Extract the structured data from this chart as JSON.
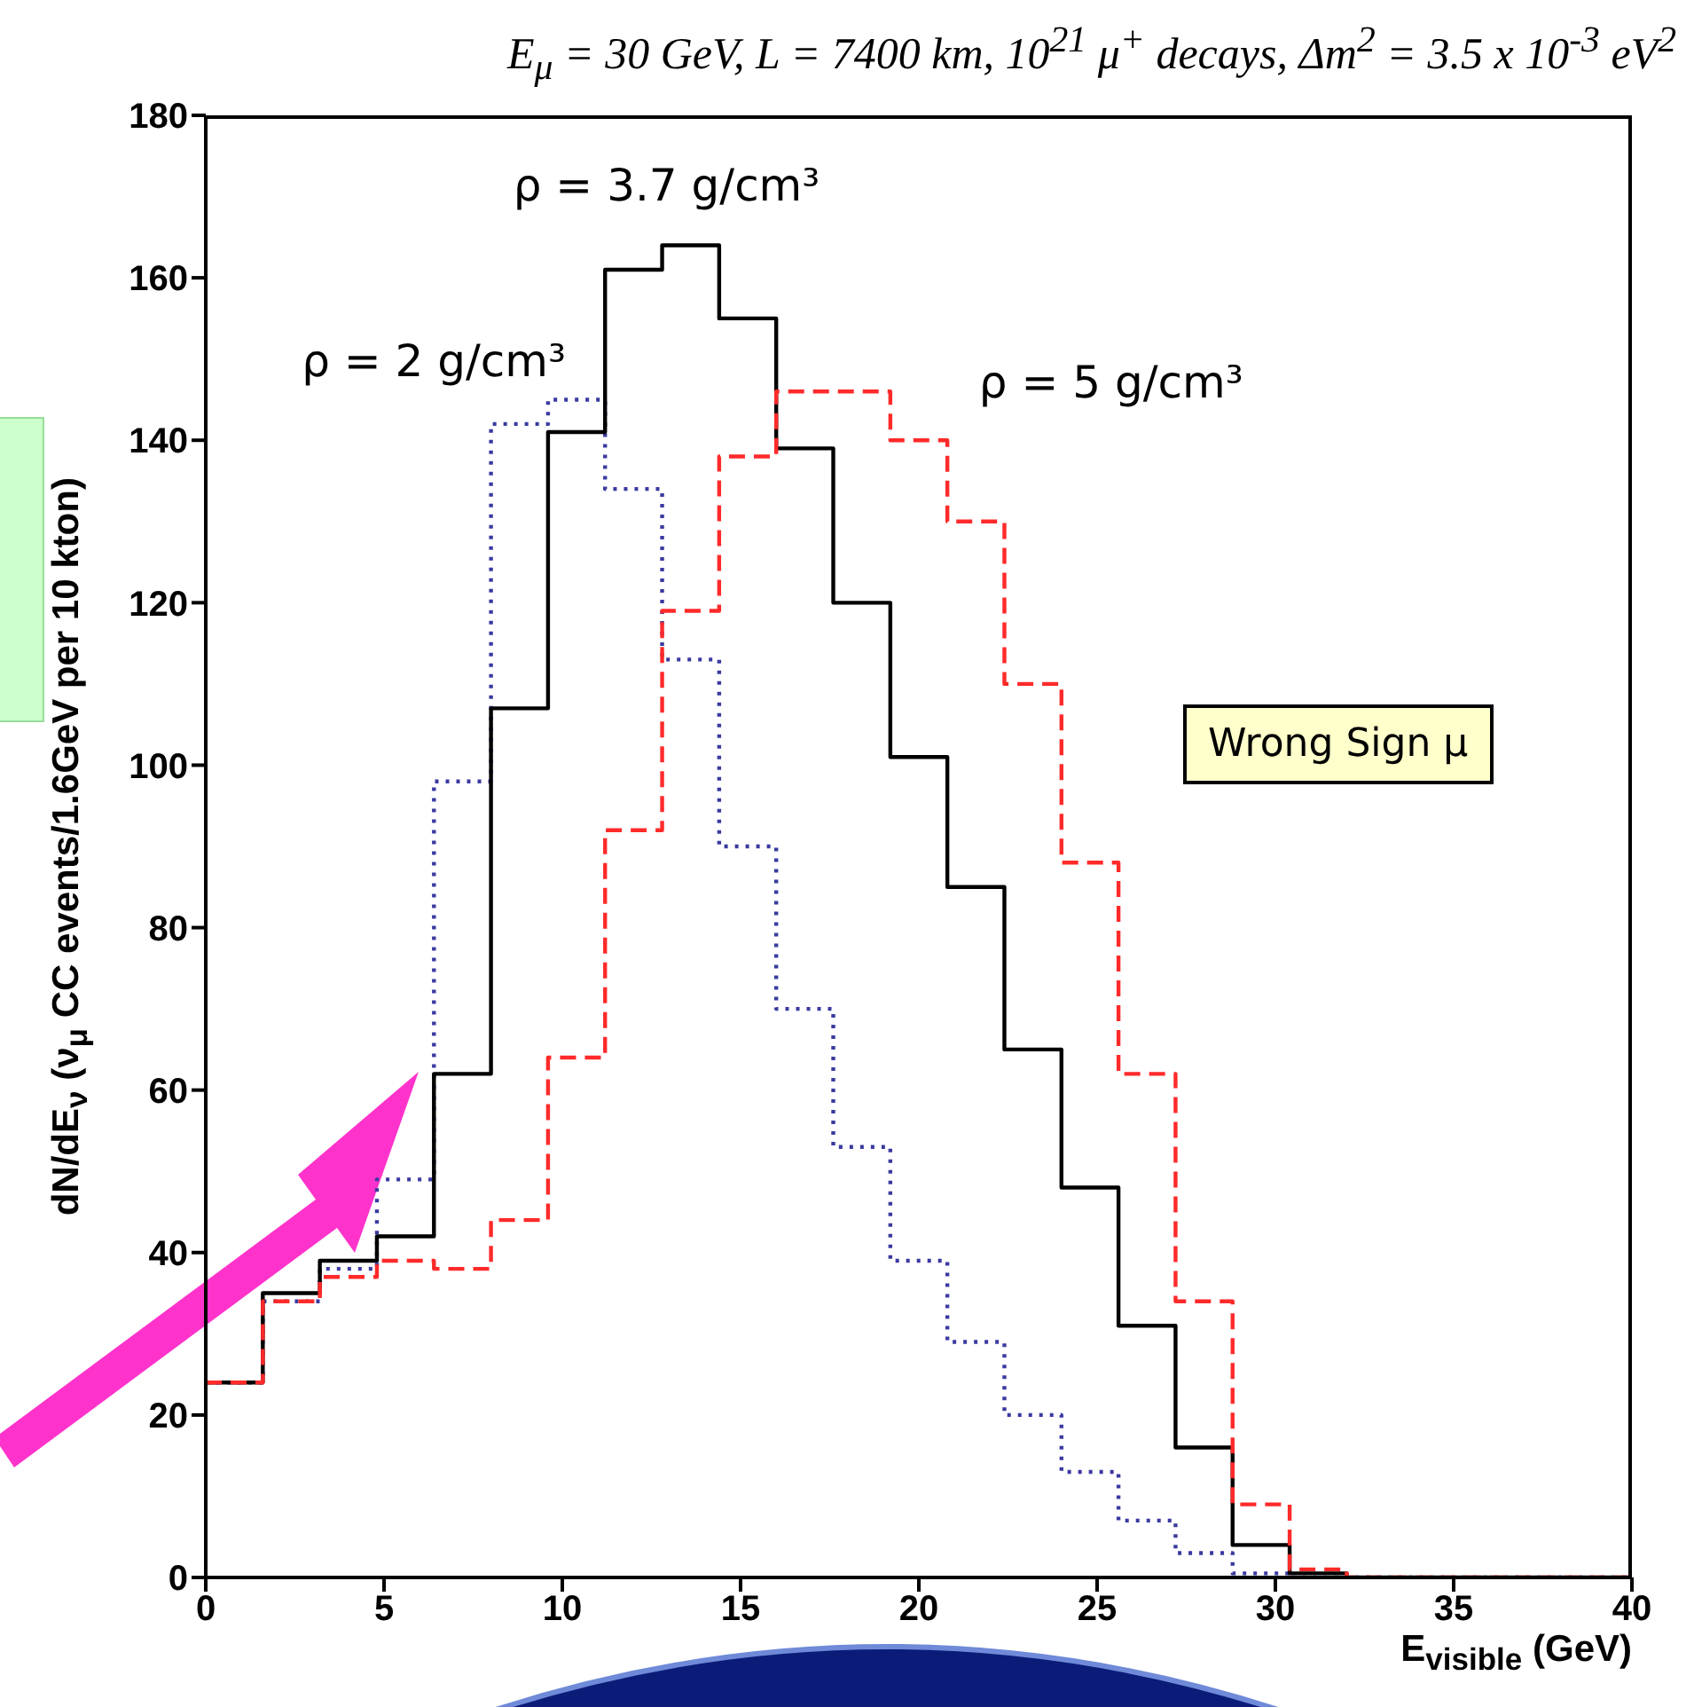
{
  "chart_data": {
    "type": "histogram",
    "title": "E$_{μ}$ = 30 GeV, L = 7400 km, 10$^{21}$ μ$^{+}$ decays,  Δm$^{2}$ = 3.5 x 10$^{-3}$ eV$^{2}$",
    "xlabel": "E$_{visible}$ (GeV)",
    "ylabel": "dN/dE$_{ν}$ (ν$_{μ}$ CC events/1.6GeV per 10 kton)",
    "bins": [
      0,
      1.6,
      3.2,
      4.8,
      6.4,
      8,
      9.6,
      11.2,
      12.8,
      14.4,
      16,
      17.6,
      19.2,
      20.8,
      22.4,
      24,
      25.6,
      27.2,
      28.8,
      30.4,
      32,
      33.6,
      35.2,
      36.8,
      38.4,
      40
    ],
    "series": [
      {
        "name": "ρ = 2 g/cm³",
        "color": "#3a3aa0",
        "line_style": "dotted",
        "values": [
          24,
          34,
          38,
          49,
          98,
          142,
          145,
          134,
          113,
          90,
          70,
          53,
          39,
          29,
          20,
          13,
          7,
          3,
          0.5,
          0,
          0,
          0,
          0,
          0,
          0
        ]
      },
      {
        "name": "ρ = 3.7 g/cm³",
        "color": "#000000",
        "line_style": "solid",
        "values": [
          24,
          35,
          39,
          42,
          62,
          107,
          141,
          161,
          164,
          155,
          139,
          120,
          101,
          85,
          65,
          48,
          31,
          16,
          4,
          0.5,
          0,
          0,
          0,
          0,
          0
        ]
      },
      {
        "name": "ρ = 5 g/cm³",
        "color": "#ff2a2a",
        "line_style": "dashed",
        "values": [
          24,
          34,
          37,
          39,
          38,
          44,
          64,
          92,
          119,
          138,
          146,
          146,
          140,
          130,
          110,
          88,
          62,
          34,
          9,
          1,
          0,
          0,
          0,
          0,
          0
        ]
      }
    ],
    "xlim": [
      0,
      40
    ],
    "ylim": [
      0,
      180
    ],
    "xticks": [
      0,
      5,
      10,
      15,
      20,
      25,
      30,
      35,
      40
    ],
    "yticks": [
      0,
      20,
      40,
      60,
      80,
      100,
      120,
      140,
      160,
      180
    ],
    "annotations": [
      "Wrong Sign μ"
    ]
  }
}
